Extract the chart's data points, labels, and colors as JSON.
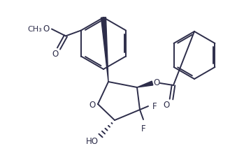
{
  "bg_color": "#ffffff",
  "line_color": "#2d2d4a",
  "line_width": 1.4,
  "font_size": 8.5,
  "figsize": [
    3.39,
    2.3
  ],
  "dpi": 100,
  "xlim": [
    0,
    339
  ],
  "ylim": [
    0,
    230
  ]
}
